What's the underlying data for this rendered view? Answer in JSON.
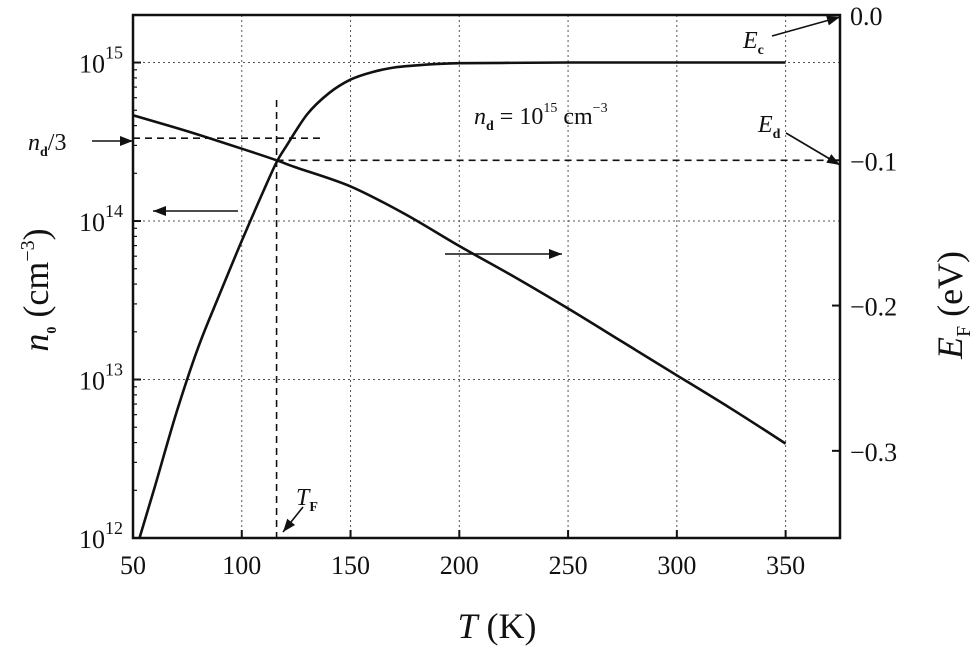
{
  "chart_data": {
    "type": "line",
    "xlabel": {
      "main": "T",
      "unit": " (K)"
    },
    "ylabel_left": {
      "main": "n",
      "sub": "0",
      "unit_pre": " (cm",
      "unit_sup": "−3",
      "unit_post": ")"
    },
    "ylabel_right": {
      "main": "E",
      "sub": "F",
      "unit": " (eV)"
    },
    "xlim": [
      50,
      375
    ],
    "xticks": [
      50,
      100,
      150,
      200,
      250,
      300,
      350
    ],
    "ylim_left_log10": [
      12,
      15.3
    ],
    "yticks_left": [
      {
        "base": "10",
        "exp": "12",
        "log10": 12
      },
      {
        "base": "10",
        "exp": "13",
        "log10": 13
      },
      {
        "base": "10",
        "exp": "14",
        "log10": 14
      },
      {
        "base": "10",
        "exp": "15",
        "log10": 15
      }
    ],
    "ylim_right": [
      -0.36,
      0.0
    ],
    "yticks_right": [
      {
        "label": "0.0",
        "value": 0.0
      },
      {
        "label": "−0.1",
        "value": -0.1
      },
      {
        "label": "−0.2",
        "value": -0.2
      },
      {
        "label": "−0.3",
        "value": -0.3
      }
    ],
    "grid": true,
    "series": [
      {
        "axis": "left",
        "x": [
          53,
          60,
          70,
          80,
          90,
          100,
          110,
          116,
          120,
          130,
          140,
          150,
          160,
          170,
          180,
          190,
          200,
          220,
          250,
          300,
          350
        ],
        "y": [
          1000000000000.0,
          2100000000000.0,
          6200000000000.0,
          16000000000000.0,
          35000000000000.0,
          75000000000000.0,
          155000000000000.0,
          235000000000000.0,
          290000000000000.0,
          470000000000000.0,
          640000000000000.0,
          780000000000000.0,
          870000000000000.0,
          930000000000000.0,
          960000000000000.0,
          980000000000000.0,
          990000000000000.0,
          995000000000000.0,
          1000000000000000.0,
          1000000000000000.0,
          1000000000000000.0
        ]
      },
      {
        "axis": "right",
        "x": [
          50,
          75,
          100,
          116,
          125,
          150,
          175,
          200,
          225,
          250,
          275,
          300,
          325,
          350
        ],
        "y": [
          -0.069,
          -0.08,
          -0.092,
          -0.1,
          -0.105,
          -0.118,
          -0.137,
          -0.159,
          -0.18,
          -0.202,
          -0.225,
          -0.248,
          -0.271,
          -0.295
        ]
      }
    ],
    "reference_lines": {
      "ed_level": -0.1,
      "nd_third_log10": 14.523,
      "tf_x": 116
    },
    "annotations": {
      "nd_value": {
        "pre": "n",
        "sub": "d",
        "mid": " = 10",
        "sup": "15",
        "post": " cm",
        "sup2": "−3"
      },
      "nd_third": {
        "pre": "n",
        "sub": "d",
        "post": "/3"
      },
      "ec": {
        "main": "E",
        "sub": "c"
      },
      "ed": {
        "main": "E",
        "sub": "d"
      },
      "tf": {
        "main": "T",
        "sub": "F"
      }
    }
  }
}
